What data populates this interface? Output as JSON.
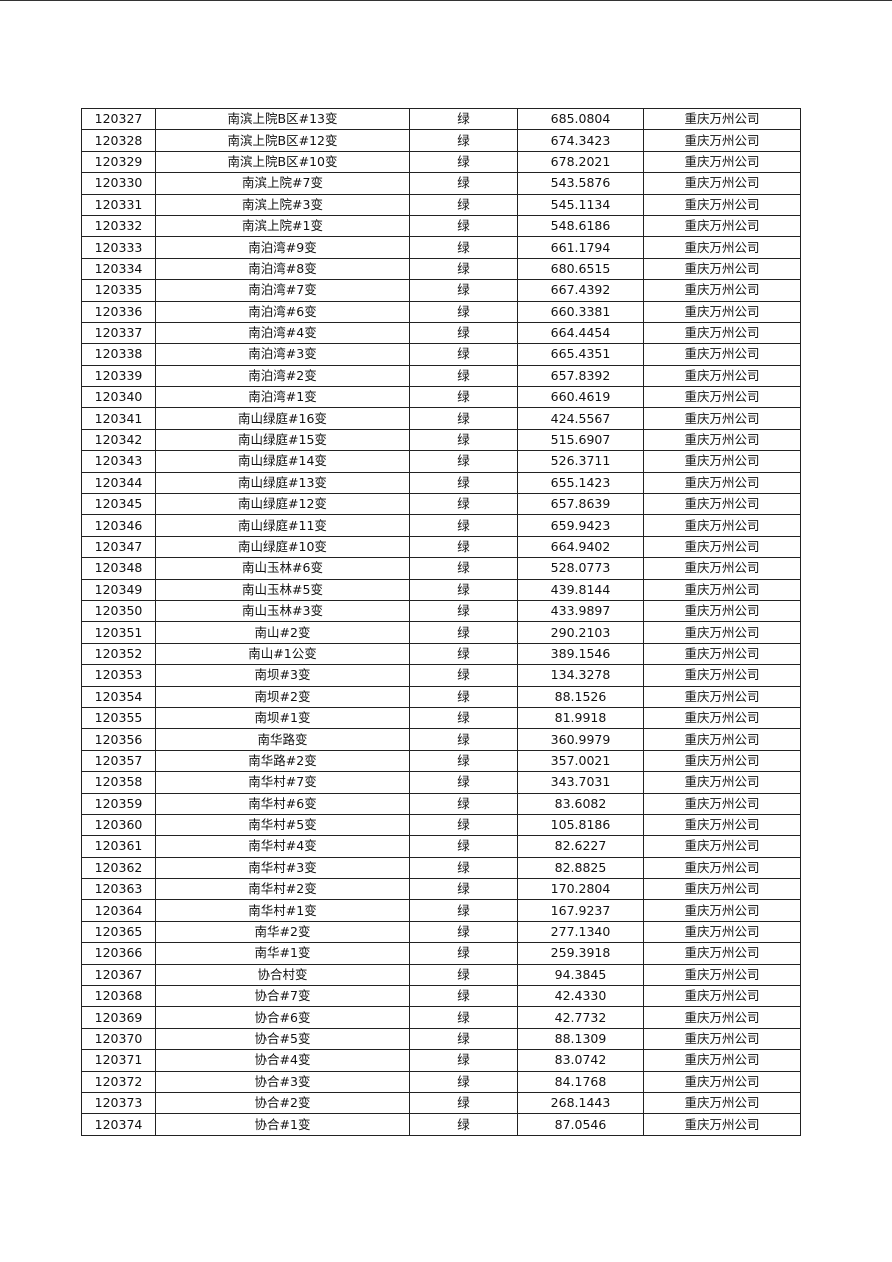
{
  "table": {
    "rows": [
      [
        "120327",
        "南滨上院B区#13变",
        "绿",
        "685.0804",
        "重庆万州公司"
      ],
      [
        "120328",
        "南滨上院B区#12变",
        "绿",
        "674.3423",
        "重庆万州公司"
      ],
      [
        "120329",
        "南滨上院B区#10变",
        "绿",
        "678.2021",
        "重庆万州公司"
      ],
      [
        "120330",
        "南滨上院#7变",
        "绿",
        "543.5876",
        "重庆万州公司"
      ],
      [
        "120331",
        "南滨上院#3变",
        "绿",
        "545.1134",
        "重庆万州公司"
      ],
      [
        "120332",
        "南滨上院#1变",
        "绿",
        "548.6186",
        "重庆万州公司"
      ],
      [
        "120333",
        "南泊湾#9变",
        "绿",
        "661.1794",
        "重庆万州公司"
      ],
      [
        "120334",
        "南泊湾#8变",
        "绿",
        "680.6515",
        "重庆万州公司"
      ],
      [
        "120335",
        "南泊湾#7变",
        "绿",
        "667.4392",
        "重庆万州公司"
      ],
      [
        "120336",
        "南泊湾#6变",
        "绿",
        "660.3381",
        "重庆万州公司"
      ],
      [
        "120337",
        "南泊湾#4变",
        "绿",
        "664.4454",
        "重庆万州公司"
      ],
      [
        "120338",
        "南泊湾#3变",
        "绿",
        "665.4351",
        "重庆万州公司"
      ],
      [
        "120339",
        "南泊湾#2变",
        "绿",
        "657.8392",
        "重庆万州公司"
      ],
      [
        "120340",
        "南泊湾#1变",
        "绿",
        "660.4619",
        "重庆万州公司"
      ],
      [
        "120341",
        "南山绿庭#16变",
        "绿",
        "424.5567",
        "重庆万州公司"
      ],
      [
        "120342",
        "南山绿庭#15变",
        "绿",
        "515.6907",
        "重庆万州公司"
      ],
      [
        "120343",
        "南山绿庭#14变",
        "绿",
        "526.3711",
        "重庆万州公司"
      ],
      [
        "120344",
        "南山绿庭#13变",
        "绿",
        "655.1423",
        "重庆万州公司"
      ],
      [
        "120345",
        "南山绿庭#12变",
        "绿",
        "657.8639",
        "重庆万州公司"
      ],
      [
        "120346",
        "南山绿庭#11变",
        "绿",
        "659.9423",
        "重庆万州公司"
      ],
      [
        "120347",
        "南山绿庭#10变",
        "绿",
        "664.9402",
        "重庆万州公司"
      ],
      [
        "120348",
        "南山玉林#6变",
        "绿",
        "528.0773",
        "重庆万州公司"
      ],
      [
        "120349",
        "南山玉林#5变",
        "绿",
        "439.8144",
        "重庆万州公司"
      ],
      [
        "120350",
        "南山玉林#3变",
        "绿",
        "433.9897",
        "重庆万州公司"
      ],
      [
        "120351",
        "南山#2变",
        "绿",
        "290.2103",
        "重庆万州公司"
      ],
      [
        "120352",
        "南山#1公变",
        "绿",
        "389.1546",
        "重庆万州公司"
      ],
      [
        "120353",
        "南坝#3变",
        "绿",
        "134.3278",
        "重庆万州公司"
      ],
      [
        "120354",
        "南坝#2变",
        "绿",
        "88.1526",
        "重庆万州公司"
      ],
      [
        "120355",
        "南坝#1变",
        "绿",
        "81.9918",
        "重庆万州公司"
      ],
      [
        "120356",
        "南华路变",
        "绿",
        "360.9979",
        "重庆万州公司"
      ],
      [
        "120357",
        "南华路#2变",
        "绿",
        "357.0021",
        "重庆万州公司"
      ],
      [
        "120358",
        "南华村#7变",
        "绿",
        "343.7031",
        "重庆万州公司"
      ],
      [
        "120359",
        "南华村#6变",
        "绿",
        "83.6082",
        "重庆万州公司"
      ],
      [
        "120360",
        "南华村#5变",
        "绿",
        "105.8186",
        "重庆万州公司"
      ],
      [
        "120361",
        "南华村#4变",
        "绿",
        "82.6227",
        "重庆万州公司"
      ],
      [
        "120362",
        "南华村#3变",
        "绿",
        "82.8825",
        "重庆万州公司"
      ],
      [
        "120363",
        "南华村#2变",
        "绿",
        "170.2804",
        "重庆万州公司"
      ],
      [
        "120364",
        "南华村#1变",
        "绿",
        "167.9237",
        "重庆万州公司"
      ],
      [
        "120365",
        "南华#2变",
        "绿",
        "277.1340",
        "重庆万州公司"
      ],
      [
        "120366",
        "南华#1变",
        "绿",
        "259.3918",
        "重庆万州公司"
      ],
      [
        "120367",
        "协合村变",
        "绿",
        "94.3845",
        "重庆万州公司"
      ],
      [
        "120368",
        "协合#7变",
        "绿",
        "42.4330",
        "重庆万州公司"
      ],
      [
        "120369",
        "协合#6变",
        "绿",
        "42.7732",
        "重庆万州公司"
      ],
      [
        "120370",
        "协合#5变",
        "绿",
        "88.1309",
        "重庆万州公司"
      ],
      [
        "120371",
        "协合#4变",
        "绿",
        "83.0742",
        "重庆万州公司"
      ],
      [
        "120372",
        "协合#3变",
        "绿",
        "84.1768",
        "重庆万州公司"
      ],
      [
        "120373",
        "协合#2变",
        "绿",
        "268.1443",
        "重庆万州公司"
      ],
      [
        "120374",
        "协合#1变",
        "绿",
        "87.0546",
        "重庆万州公司"
      ]
    ]
  }
}
